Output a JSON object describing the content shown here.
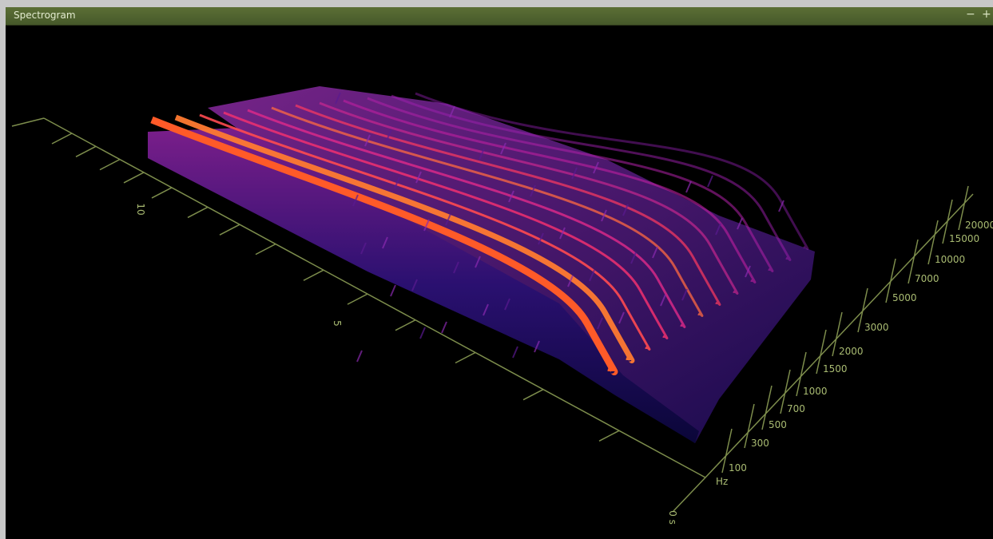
{
  "window": {
    "title": "Spectrogram",
    "controls": [
      "−",
      "+"
    ]
  },
  "time_axis": {
    "labels": [
      "0 s",
      "5",
      "10"
    ]
  },
  "freq_axis": {
    "unit": "Hz",
    "labels": [
      "100",
      "300",
      "500",
      "700",
      "1000",
      "1500",
      "2000",
      "3000",
      "5000",
      "7000",
      "10000",
      "15000",
      "20000"
    ]
  }
}
